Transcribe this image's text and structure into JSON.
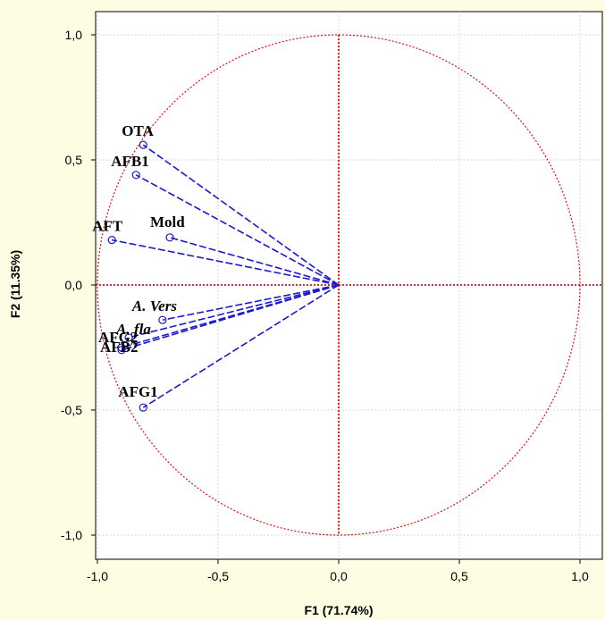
{
  "chart_data": {
    "type": "scatter",
    "subtype": "correlation-circle",
    "xlabel": "F1 (71.74%)",
    "ylabel": "F2 (11.35%)",
    "xlim": [
      -1.1,
      1.1
    ],
    "ylim": [
      -1.1,
      1.1
    ],
    "xticks": [
      -1.0,
      -0.5,
      0.0,
      0.5,
      1.0
    ],
    "yticks": [
      -1.0,
      -0.5,
      0.0,
      0.5,
      1.0
    ],
    "xtick_labels": [
      "-1,0",
      "-0,5",
      "0,0",
      "0,5",
      "1,0"
    ],
    "ytick_labels": [
      "-1,0",
      "-0,5",
      "0,0",
      "0,5",
      "1,0"
    ],
    "grid": true,
    "unit_circle": true,
    "colors": {
      "vectors": "#1a1acc",
      "circle": "#e01010",
      "background": "#fdfde3",
      "plot_bg": "#ffffff"
    },
    "points": [
      {
        "label": "OTA",
        "x": -0.81,
        "y": 0.56,
        "italic": false
      },
      {
        "label": "AFB1",
        "x": -0.84,
        "y": 0.44,
        "italic": false
      },
      {
        "label": "AFT",
        "x": -0.94,
        "y": 0.18,
        "italic": false
      },
      {
        "label": "Mold",
        "x": -0.7,
        "y": 0.19,
        "italic": false
      },
      {
        "label": "A. Vers",
        "x": -0.73,
        "y": -0.14,
        "italic": true
      },
      {
        "label": "A. fla",
        "x": -0.87,
        "y": -0.21,
        "italic": true
      },
      {
        "label": "AFG2",
        "x": -0.9,
        "y": -0.25,
        "italic": false
      },
      {
        "label": "AFB2",
        "x": -0.9,
        "y": -0.26,
        "italic": false
      },
      {
        "label": "AFG1",
        "x": -0.81,
        "y": -0.49,
        "italic": false
      }
    ]
  }
}
